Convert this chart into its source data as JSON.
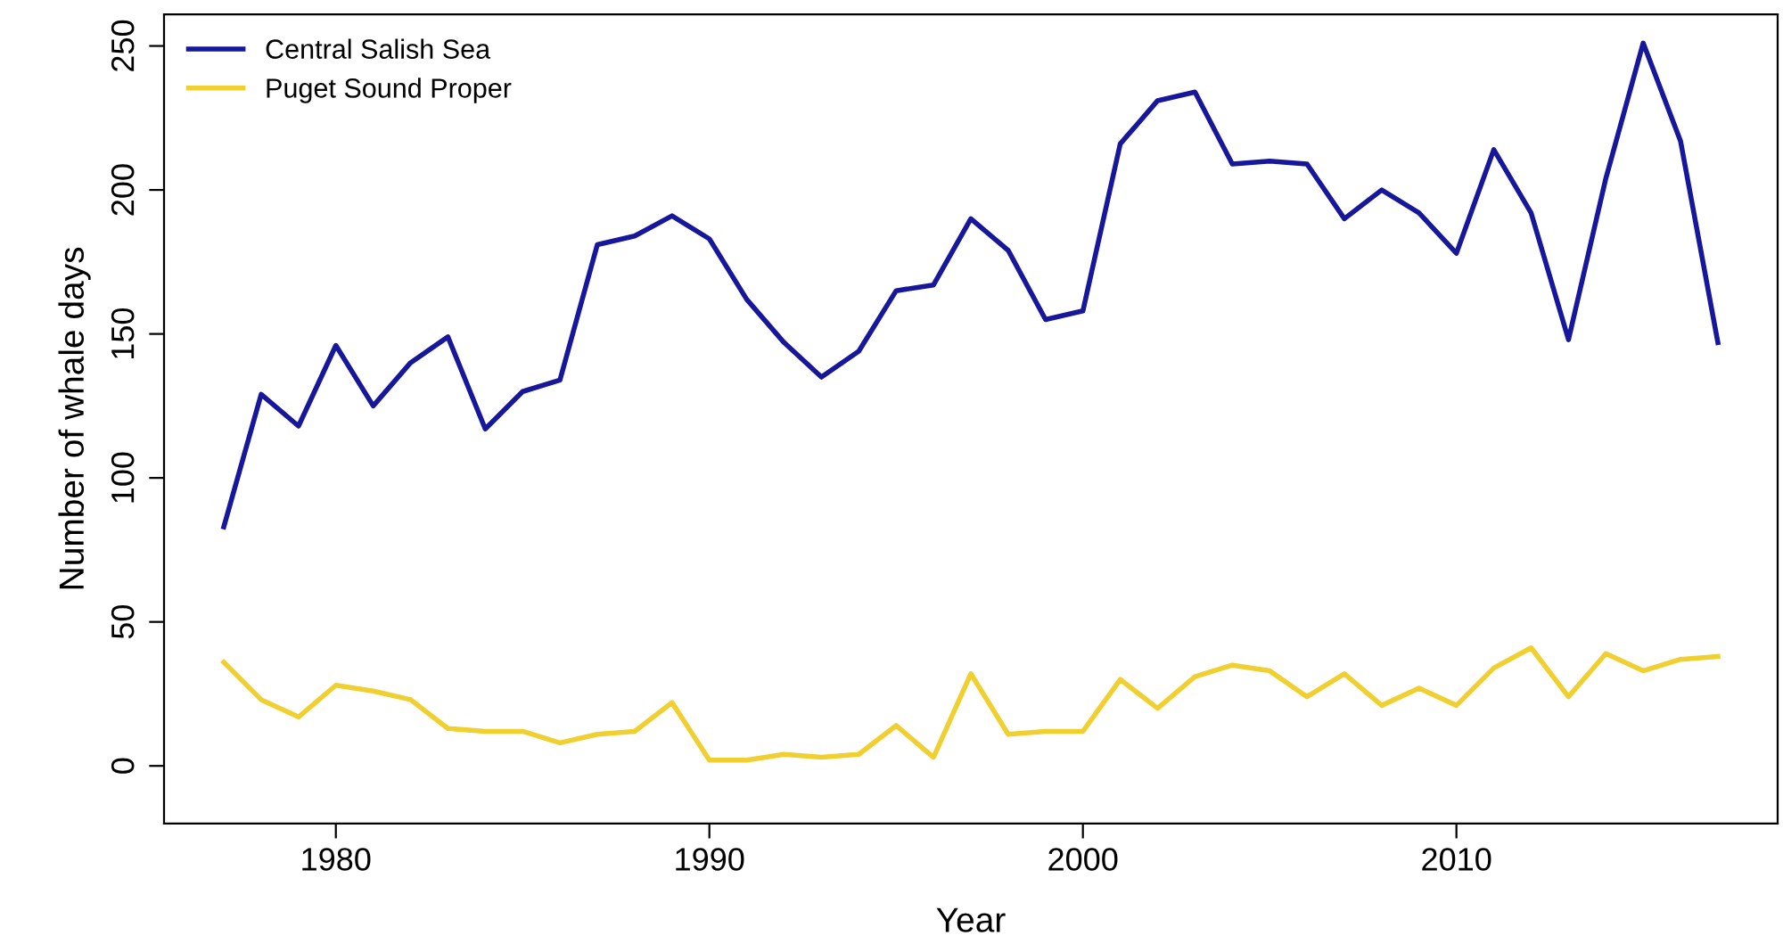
{
  "chart_data": {
    "type": "line",
    "xlabel": "Year",
    "ylabel": "Number of whale days",
    "x": [
      1977,
      1978,
      1979,
      1980,
      1981,
      1982,
      1983,
      1984,
      1985,
      1986,
      1987,
      1988,
      1989,
      1990,
      1991,
      1992,
      1993,
      1994,
      1995,
      1996,
      1997,
      1998,
      1999,
      2000,
      2001,
      2002,
      2003,
      2004,
      2005,
      2006,
      2007,
      2008,
      2009,
      2010,
      2011,
      2012,
      2013,
      2014,
      2015,
      2016,
      2017
    ],
    "series": [
      {
        "name": "Central Salish Sea",
        "color": "#17179b",
        "values": [
          83,
          129,
          118,
          146,
          125,
          140,
          149,
          117,
          130,
          134,
          181,
          184,
          191,
          183,
          162,
          147,
          135,
          144,
          165,
          167,
          190,
          179,
          155,
          158,
          216,
          231,
          234,
          209,
          210,
          209,
          190,
          200,
          192,
          178,
          214,
          192,
          148,
          204,
          251,
          217,
          147
        ]
      },
      {
        "name": "Puget Sound Proper",
        "color": "#f0d030",
        "values": [
          36,
          23,
          17,
          28,
          26,
          23,
          13,
          12,
          12,
          8,
          11,
          12,
          22,
          2,
          2,
          4,
          3,
          4,
          14,
          3,
          32,
          11,
          12,
          12,
          30,
          20,
          31,
          35,
          33,
          24,
          32,
          21,
          27,
          21,
          34,
          41,
          24,
          39,
          33,
          37,
          38
        ]
      }
    ],
    "xlim": [
      1975.4,
      2018.6
    ],
    "xticks": [
      1980,
      1990,
      2000,
      2010
    ],
    "ylim": [
      -20,
      261
    ],
    "yticks": [
      0,
      50,
      100,
      150,
      200,
      250
    ],
    "grid": false,
    "legend": "top left",
    "line_style": "solid"
  }
}
